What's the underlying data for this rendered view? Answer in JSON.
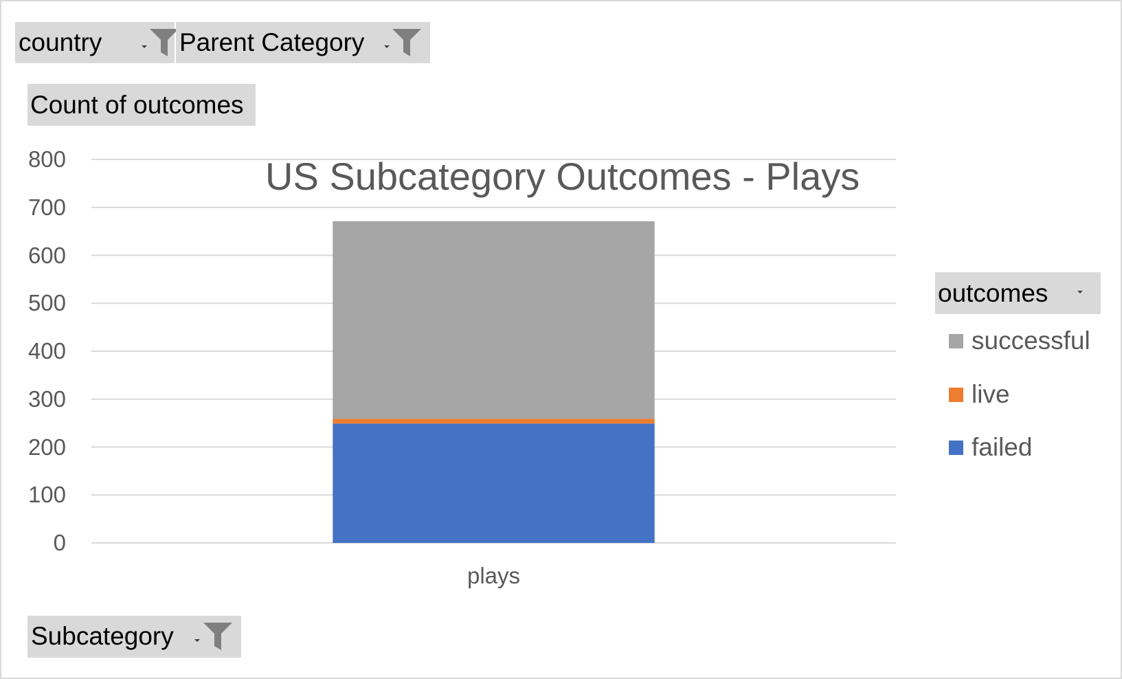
{
  "filters": {
    "country_label": "country",
    "parent_category_label": "Parent Category",
    "subcategory_label": "Subcategory",
    "value_field_label": "Count of outcomes",
    "legend_field_label": "outcomes"
  },
  "colors": {
    "failed": "#4472c4",
    "live": "#ed7d31",
    "successful": "#a5a5a5",
    "gridline": "#d9d9d9",
    "field_button": "#d9d9d9"
  },
  "chart_data": {
    "type": "bar",
    "stacked": true,
    "title": "US Subcategory Outcomes - Plays",
    "categories": [
      "plays"
    ],
    "series": [
      {
        "name": "failed",
        "values": [
          249
        ]
      },
      {
        "name": "live",
        "values": [
          10
        ]
      },
      {
        "name": "successful",
        "values": [
          412
        ]
      }
    ],
    "ylim": [
      0,
      800
    ],
    "yticks": [
      "0",
      "100",
      "200",
      "300",
      "400",
      "500",
      "600",
      "700",
      "800"
    ],
    "grid": true,
    "legend_position": "right",
    "legend_order": [
      "successful",
      "live",
      "failed"
    ]
  }
}
